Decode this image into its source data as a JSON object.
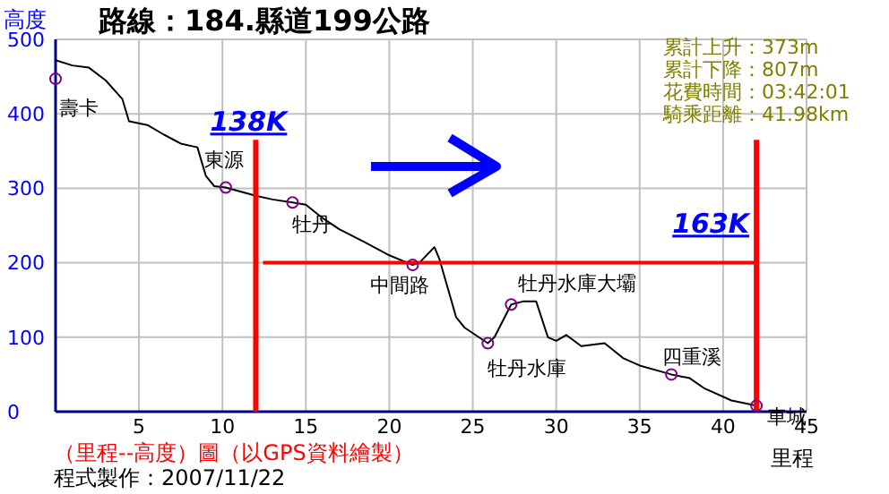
{
  "chart_data": {
    "type": "line",
    "title": "路線：184.縣道199公路",
    "ylabel": "高度",
    "xlabel": "里程",
    "x": [
      0,
      1,
      2,
      3,
      4,
      4.4,
      5.5,
      6.5,
      7.5,
      8.5,
      9,
      9.5,
      10.2,
      12,
      13,
      14.2,
      15,
      16,
      17,
      18.5,
      20,
      21.4,
      21.8,
      22.7,
      23,
      24,
      24.5,
      25.9,
      26.3,
      27.3,
      28,
      28.8,
      29.5,
      30,
      30.6,
      31.5,
      32.9,
      34,
      35,
      36.9,
      38,
      38.9,
      40.5,
      42
    ],
    "series": [
      {
        "color": "#000000",
        "values": [
          472,
          465,
          462,
          445,
          420,
          390,
          385,
          372,
          360,
          355,
          317,
          303,
          301,
          290,
          285,
          281,
          278,
          260,
          245,
          228,
          210,
          197,
          200,
          221,
          205,
          127,
          113,
          92,
          100,
          144,
          148,
          148,
          100,
          95,
          103,
          88,
          92,
          72,
          62,
          50,
          45,
          31,
          15,
          8
        ]
      }
    ],
    "xlim": [
      0,
      45
    ],
    "ylim": [
      0,
      500
    ],
    "xticks": [
      5,
      10,
      15,
      20,
      25,
      30,
      35,
      40,
      45
    ],
    "yticks": [
      0,
      100,
      200,
      300,
      400,
      500
    ],
    "grid": true,
    "marker": "none",
    "line_style": "solid",
    "ref_lines": [
      {
        "axis": "x",
        "value": 12,
        "label": "138K",
        "color": "#ff0000"
      },
      {
        "axis": "x",
        "value": 42,
        "label": "163K",
        "color": "#ff0000"
      },
      {
        "axis": "y",
        "value": 200,
        "color": "#ff0000"
      }
    ],
    "annotations": [
      {
        "text": "壽卡",
        "x": 0,
        "y": 447
      },
      {
        "text": "東源",
        "x": 10.2,
        "y": 301
      },
      {
        "text": "牡丹",
        "x": 14.2,
        "y": 281
      },
      {
        "text": "中間路",
        "x": 21.4,
        "y": 197
      },
      {
        "text": "牡丹水庫",
        "x": 25.9,
        "y": 92
      },
      {
        "text": "牡丹水庫大壩",
        "x": 27.3,
        "y": 144
      },
      {
        "text": "四重溪",
        "x": 36.9,
        "y": 50
      },
      {
        "text": "車城",
        "x": 42,
        "y": 8
      },
      "累計上升：373m",
      "累計下降：807m",
      "花費時間：03:42:01",
      "騎乘距離：41.98km",
      "（里程--高度）圖（以GPS資料繪製）",
      "程式製作：2007/11/22"
    ]
  }
}
